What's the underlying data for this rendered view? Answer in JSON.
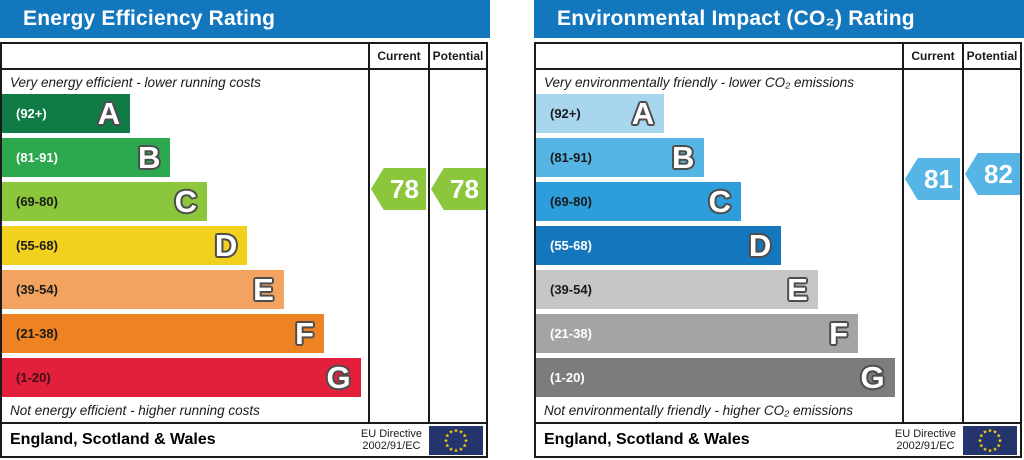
{
  "charts": [
    {
      "title": "Energy Efficiency Rating",
      "top_caption": "Very energy efficient - lower running costs",
      "bottom_caption": "Not energy efficient - higher running costs",
      "col_current": "Current",
      "col_potential": "Potential",
      "bands": [
        {
          "letter": "A",
          "range": "(92+)",
          "color": "#0f7c45",
          "label_color": "#ffffff",
          "width_pct": 35
        },
        {
          "letter": "B",
          "range": "(81-91)",
          "color": "#2ca94f",
          "label_color": "#ffffff",
          "width_pct": 46
        },
        {
          "letter": "C",
          "range": "(69-80)",
          "color": "#8bc63d",
          "label_color": "#1a1a1a",
          "width_pct": 56
        },
        {
          "letter": "D",
          "range": "(55-68)",
          "color": "#f2d01e",
          "label_color": "#1a1a1a",
          "width_pct": 67
        },
        {
          "letter": "E",
          "range": "(39-54)",
          "color": "#f3a360",
          "label_color": "#1a1a1a",
          "width_pct": 77
        },
        {
          "letter": "F",
          "range": "(21-38)",
          "color": "#ed8323",
          "label_color": "#1a1a1a",
          "width_pct": 88
        },
        {
          "letter": "G",
          "range": "(1-20)",
          "color": "#e2203c",
          "label_color": "#3f0d18",
          "width_pct": 98
        }
      ],
      "current": {
        "value": "78",
        "color": "#8bc63d"
      },
      "potential": {
        "value": "78",
        "color": "#8bc63d"
      },
      "footer_region": "England, Scotland & Wales",
      "directive_line1": "EU Directive",
      "directive_line2": "2002/91/EC"
    },
    {
      "title": "Environmental Impact (CO₂) Rating",
      "top_caption": "Very environmentally friendly - lower CO₂ emissions",
      "bottom_caption": "Not environmentally friendly - higher CO₂ emissions",
      "col_current": "Current",
      "col_potential": "Potential",
      "bands": [
        {
          "letter": "A",
          "range": "(92+)",
          "color": "#a7d6ee",
          "label_color": "#1a1a1a",
          "width_pct": 35
        },
        {
          "letter": "B",
          "range": "(81-91)",
          "color": "#56b5e4",
          "label_color": "#1a1a1a",
          "width_pct": 46
        },
        {
          "letter": "C",
          "range": "(69-80)",
          "color": "#2d9edb",
          "label_color": "#1a1a1a",
          "width_pct": 56
        },
        {
          "letter": "D",
          "range": "(55-68)",
          "color": "#1476bc",
          "label_color": "#ffffff",
          "width_pct": 67
        },
        {
          "letter": "E",
          "range": "(39-54)",
          "color": "#c6c6c6",
          "label_color": "#1a1a1a",
          "width_pct": 77
        },
        {
          "letter": "F",
          "range": "(21-38)",
          "color": "#a4a4a4",
          "label_color": "#ffffff",
          "width_pct": 88
        },
        {
          "letter": "G",
          "range": "(1-20)",
          "color": "#7c7c7c",
          "label_color": "#ffffff",
          "width_pct": 98
        }
      ],
      "current": {
        "value": "81",
        "color": "#56b5e4"
      },
      "potential": {
        "value": "82",
        "color": "#56b5e4"
      },
      "footer_region": "England, Scotland & Wales",
      "directive_line1": "EU Directive",
      "directive_line2": "2002/91/EC"
    }
  ],
  "chart_data": [
    {
      "type": "bar",
      "title": "Energy Efficiency Rating",
      "categories": [
        "A (92+)",
        "B (81-91)",
        "C (69-80)",
        "D (55-68)",
        "E (39-54)",
        "F (21-38)",
        "G (1-20)"
      ],
      "values": [
        35,
        46,
        56,
        67,
        77,
        88,
        98
      ],
      "band_colors": [
        "#0f7c45",
        "#2ca94f",
        "#8bc63d",
        "#f2d01e",
        "#f3a360",
        "#ed8323",
        "#e2203c"
      ],
      "current_rating": 78,
      "potential_rating": 78,
      "current_band": "C",
      "potential_band": "C",
      "top_annotation": "Very energy efficient - lower running costs",
      "bottom_annotation": "Not energy efficient - higher running costs",
      "legend_position": "right-columns (Current / Potential)",
      "footer": "England, Scotland & Wales, EU Directive 2002/91/EC"
    },
    {
      "type": "bar",
      "title": "Environmental Impact (CO₂) Rating",
      "categories": [
        "A (92+)",
        "B (81-91)",
        "C (69-80)",
        "D (55-68)",
        "E (39-54)",
        "F (21-38)",
        "G (1-20)"
      ],
      "values": [
        35,
        46,
        56,
        67,
        77,
        88,
        98
      ],
      "band_colors": [
        "#a7d6ee",
        "#56b5e4",
        "#2d9edb",
        "#1476bc",
        "#c6c6c6",
        "#a4a4a4",
        "#7c7c7c"
      ],
      "current_rating": 81,
      "potential_rating": 82,
      "current_band": "B",
      "potential_band": "B",
      "top_annotation": "Very environmentally friendly - lower CO₂ emissions",
      "bottom_annotation": "Not environmentally friendly - higher CO₂ emissions",
      "legend_position": "right-columns (Current / Potential)",
      "footer": "England, Scotland & Wales, EU Directive 2002/91/EC"
    }
  ]
}
